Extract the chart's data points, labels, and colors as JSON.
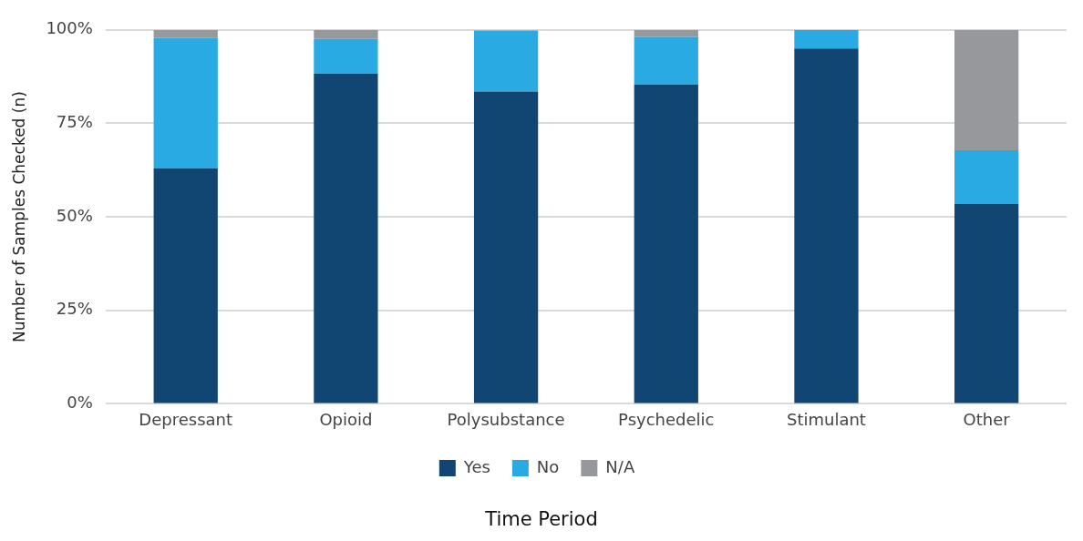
{
  "chart_data": {
    "type": "bar",
    "xlabel": "Time Period",
    "ylabel": "Number of Samples Checked (n)",
    "categories": [
      "Depressant",
      "Opioid",
      "Polysubstance",
      "Psychedelic",
      "Stimulant",
      "Other"
    ],
    "stacked": true,
    "series": [
      {
        "name": "Yes",
        "color": "#114673",
        "values": [
          63,
          88.3,
          83.5,
          85.4,
          95,
          53.5
        ]
      },
      {
        "name": "No",
        "color": "#2aaae2",
        "values": [
          34.9,
          9.3,
          16.3,
          12.7,
          5,
          14.3
        ]
      },
      {
        "name": "N/A",
        "color": "#97989c",
        "values": [
          2.1,
          2.4,
          0,
          1.9,
          0,
          32.2
        ]
      }
    ],
    "ylim": [
      0,
      100
    ],
    "yticks": [
      {
        "value": 0,
        "label": "0%"
      },
      {
        "value": 25,
        "label": "25%"
      },
      {
        "value": 50,
        "label": "50%"
      },
      {
        "value": 75,
        "label": "75%"
      },
      {
        "value": 100,
        "label": "100%"
      }
    ],
    "grid": "y",
    "legend": "bottom"
  }
}
